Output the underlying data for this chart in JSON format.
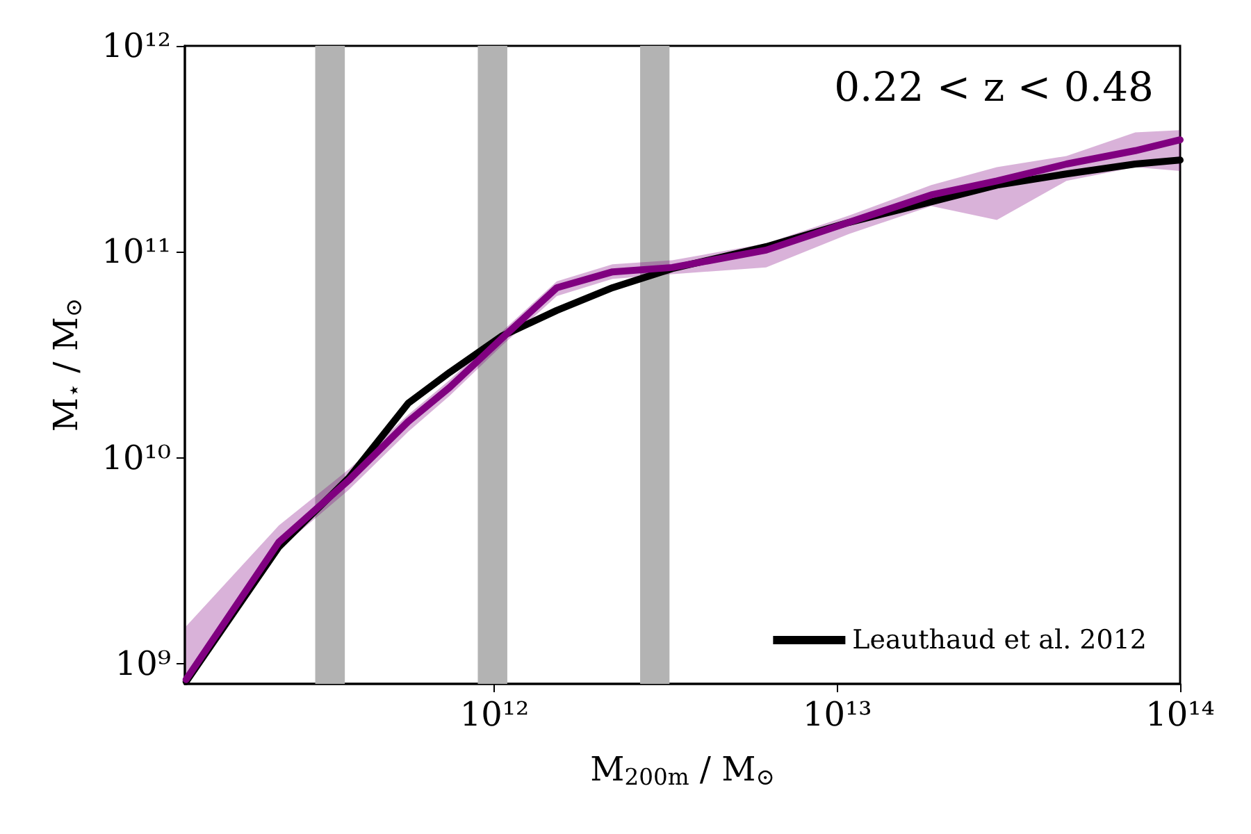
{
  "chart_data": {
    "type": "line",
    "xlabel": "M$_{200m}$ / M$_{⊙}$",
    "ylabel": "M$_{⋆}$ / M$_{⊙}$",
    "annotations": [
      "0.22 < z < 0.48"
    ],
    "log": "xy",
    "xlim": [
      125000000000.0,
      100000000000000.0
    ],
    "ylim": [
      800000000.0,
      1000000000000.0
    ],
    "xticks": [
      {
        "value": 1000000000000.0,
        "label": "10¹²"
      },
      {
        "value": 10000000000000.0,
        "label": "10¹³"
      },
      {
        "value": 100000000000000.0,
        "label": "10¹⁴"
      }
    ],
    "yticks": [
      {
        "value": 1000000000.0,
        "label": "10⁹"
      },
      {
        "value": 10000000000.0,
        "label": "10¹⁰"
      },
      {
        "value": 100000000000.0,
        "label": "10¹¹"
      },
      {
        "value": 1000000000000.0,
        "label": "10¹²"
      }
    ],
    "x": [
      126000000000.0,
      235000000000.0,
      376000000000.0,
      560000000000.0,
      740000000000.0,
      1050000000000.0,
      1520000000000.0,
      2210000000000.0,
      3300000000000.0,
      6200000000000.0,
      10800000000000.0,
      18800000000000.0,
      29200000000000.0,
      46600000000000.0,
      74000000000000.0,
      100000000000000.0
    ],
    "series": [
      {
        "name": "Leauthaud et al. 2012",
        "color": "#000000",
        "values": [
          820000000.0,
          3700000000.0,
          8000000000.0,
          18400000000.0,
          26000000000.0,
          39000000000.0,
          52000000000.0,
          67000000000.0,
          83000000000.0,
          106000000000.0,
          139000000000.0,
          175000000000.0,
          211000000000.0,
          239000000000.0,
          267000000000.0,
          279000000000.0
        ]
      },
      {
        "color": "#800080",
        "values": [
          840000000.0,
          3900000000.0,
          7800000000.0,
          15000000000.0,
          22000000000.0,
          38000000000.0,
          67000000000.0,
          80000000000.0,
          84000000000.0,
          102000000000.0,
          139000000000.0,
          189000000000.0,
          221000000000.0,
          267000000000.0,
          310000000000.0,
          350000000000.0
        ],
        "lower": [
          800000000.0,
          3600000000.0,
          7000000000.0,
          13400000000.0,
          20000000000.0,
          35000000000.0,
          61000000000.0,
          74000000000.0,
          78000000000.0,
          84000000000.0,
          122000000000.0,
          167000000000.0,
          143000000000.0,
          221000000000.0,
          258000000000.0,
          247000000000.0
        ],
        "upper": [
          1520000000.0,
          4700000000.0,
          8800000000.0,
          16200000000.0,
          23900000000.0,
          41000000000.0,
          72000000000.0,
          87000000000.0,
          91000000000.0,
          110000000000.0,
          150000000000.0,
          211000000000.0,
          258000000000.0,
          292000000000.0,
          380000000000.0,
          390000000000.0
        ]
      }
    ],
    "bands": [
      {
        "axis": "x",
        "from": 300000000000.0,
        "to": 366000000000.0,
        "color": "#b3b3b3"
      },
      {
        "axis": "x",
        "from": 894000000000.0,
        "to": 1090000000000.0,
        "color": "#b3b3b3"
      },
      {
        "axis": "x",
        "from": 2660000000000.0,
        "to": 3240000000000.0,
        "color": "#b3b3b3"
      }
    ],
    "legend": "bottom right",
    "grid": false,
    "marker": "none",
    "line_style": "solid"
  }
}
